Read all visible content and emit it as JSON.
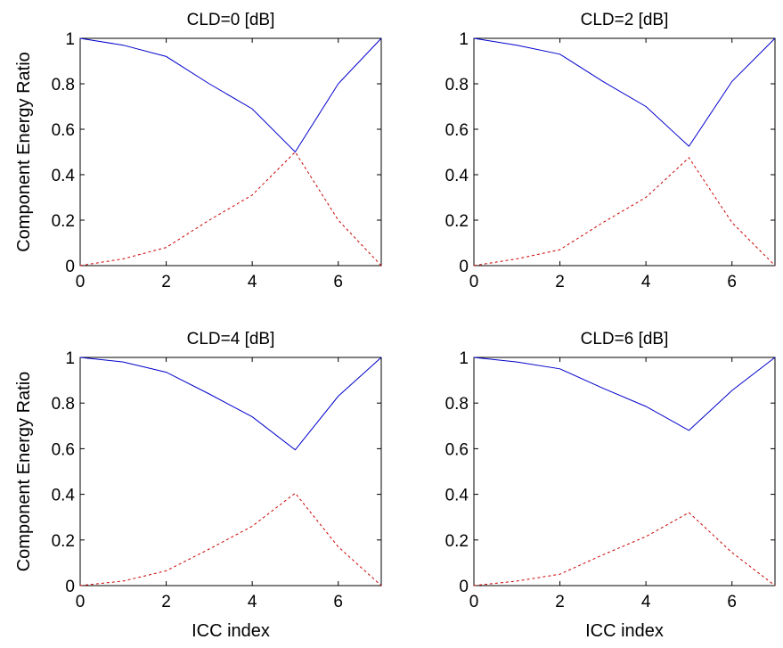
{
  "chart_data": [
    {
      "type": "line",
      "title": "CLD=0 [dB]",
      "xlabel": "",
      "ylabel": "Component Energy Ratio",
      "xlim": [
        0,
        7
      ],
      "ylim": [
        0,
        1
      ],
      "xticks": [
        0,
        2,
        4,
        6
      ],
      "yticks": [
        "0",
        "0.2",
        "0.4",
        "0.6",
        "0.8",
        "1"
      ],
      "x": [
        0,
        1,
        2,
        3,
        4,
        5,
        6,
        7
      ],
      "series": [
        {
          "color": "#0000cc",
          "style": "solid",
          "values": [
            1.0,
            0.97,
            0.92,
            0.8,
            0.69,
            0.5,
            0.8,
            1.0
          ]
        },
        {
          "color": "#cc0000",
          "style": "dashed",
          "values": [
            0.0,
            0.03,
            0.08,
            0.2,
            0.31,
            0.5,
            0.2,
            0.0
          ]
        }
      ]
    },
    {
      "type": "line",
      "title": "CLD=2 [dB]",
      "xlabel": "",
      "ylabel": "",
      "xlim": [
        0,
        7
      ],
      "ylim": [
        0,
        1
      ],
      "xticks": [
        0,
        2,
        4,
        6
      ],
      "yticks": [
        "0",
        "0.2",
        "0.4",
        "0.6",
        "0.8",
        "1"
      ],
      "x": [
        0,
        1,
        2,
        3,
        4,
        5,
        6,
        7
      ],
      "series": [
        {
          "color": "#0000cc",
          "style": "solid",
          "values": [
            1.0,
            0.97,
            0.93,
            0.81,
            0.7,
            0.525,
            0.81,
            1.0
          ]
        },
        {
          "color": "#cc0000",
          "style": "dashed",
          "values": [
            0.0,
            0.03,
            0.07,
            0.19,
            0.3,
            0.475,
            0.19,
            0.0
          ]
        }
      ]
    },
    {
      "type": "line",
      "title": "CLD=4 [dB]",
      "xlabel": "ICC index",
      "ylabel": "Component Energy Ratio",
      "xlim": [
        0,
        7
      ],
      "ylim": [
        0,
        1
      ],
      "xticks": [
        0,
        2,
        4,
        6
      ],
      "yticks": [
        "0",
        "0.2",
        "0.4",
        "0.6",
        "0.8",
        "1"
      ],
      "x": [
        0,
        1,
        2,
        3,
        4,
        5,
        6,
        7
      ],
      "series": [
        {
          "color": "#0000cc",
          "style": "solid",
          "values": [
            1.0,
            0.98,
            0.935,
            0.84,
            0.74,
            0.595,
            0.83,
            1.0
          ]
        },
        {
          "color": "#cc0000",
          "style": "dashed",
          "values": [
            0.0,
            0.02,
            0.065,
            0.16,
            0.26,
            0.405,
            0.17,
            0.0
          ]
        }
      ]
    },
    {
      "type": "line",
      "title": "CLD=6 [dB]",
      "xlabel": "ICC index",
      "ylabel": "",
      "xlim": [
        0,
        7
      ],
      "ylim": [
        0,
        1
      ],
      "xticks": [
        0,
        2,
        4,
        6
      ],
      "yticks": [
        "0",
        "0.2",
        "0.4",
        "0.6",
        "0.8",
        "1"
      ],
      "x": [
        0,
        1,
        2,
        3,
        4,
        5,
        6,
        7
      ],
      "series": [
        {
          "color": "#0000cc",
          "style": "solid",
          "values": [
            1.0,
            0.98,
            0.95,
            0.865,
            0.785,
            0.68,
            0.855,
            1.0
          ]
        },
        {
          "color": "#cc0000",
          "style": "dashed",
          "values": [
            0.0,
            0.02,
            0.05,
            0.135,
            0.215,
            0.32,
            0.145,
            0.0
          ]
        }
      ]
    }
  ]
}
